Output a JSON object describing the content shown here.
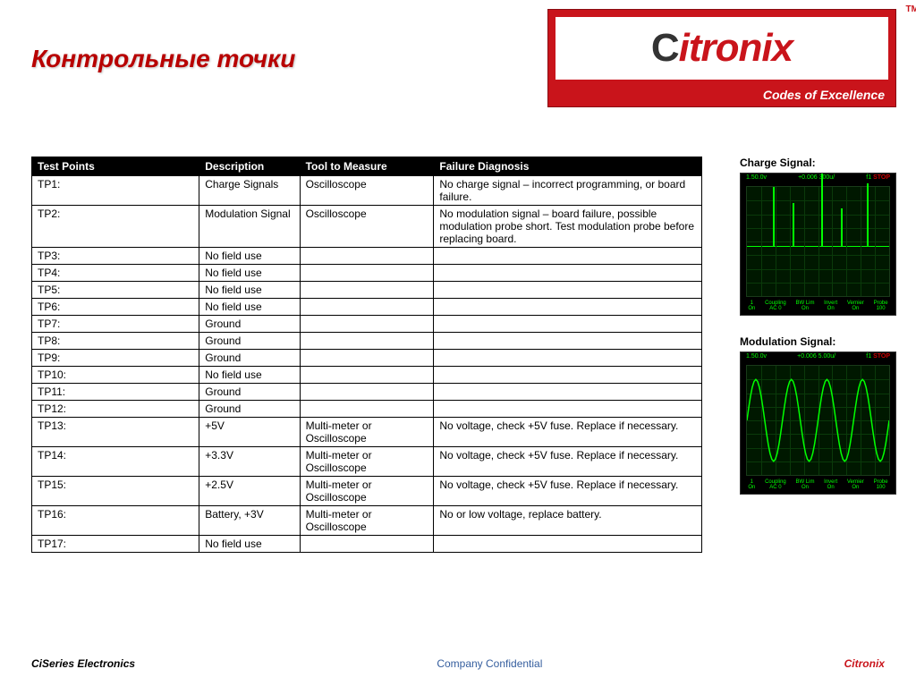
{
  "title": "Контрольные точки",
  "logo": {
    "name": "Citronix",
    "tagline": "Codes of Excellence",
    "tm": "TM"
  },
  "table": {
    "columns": [
      "Test Points",
      "Description",
      "Tool to Measure",
      "Failure Diagnosis"
    ],
    "rows": [
      [
        "TP1:",
        "Charge Signals",
        "Oscilloscope",
        "No charge signal – incorrect programming, or board failure."
      ],
      [
        "TP2:",
        "Modulation Signal",
        "Oscilloscope",
        "No modulation signal – board failure, possible modulation probe short. Test modulation probe before replacing board."
      ],
      [
        "TP3:",
        "No field use",
        "",
        ""
      ],
      [
        "TP4:",
        "No field use",
        "",
        ""
      ],
      [
        "TP5:",
        "No field use",
        "",
        ""
      ],
      [
        "TP6:",
        "No field use",
        "",
        ""
      ],
      [
        "TP7:",
        "Ground",
        "",
        ""
      ],
      [
        "TP8:",
        "Ground",
        "",
        ""
      ],
      [
        "TP9:",
        "Ground",
        "",
        ""
      ],
      [
        "TP10:",
        "No field use",
        "",
        ""
      ],
      [
        "TP11:",
        "Ground",
        "",
        ""
      ],
      [
        "TP12:",
        "Ground",
        "",
        ""
      ],
      [
        "TP13:",
        "+5V",
        "Multi-meter or Oscilloscope",
        "No voltage, check +5V fuse. Replace if necessary."
      ],
      [
        "TP14:",
        "+3.3V",
        "Multi-meter or Oscilloscope",
        "No voltage, check +5V fuse. Replace if necessary."
      ],
      [
        "TP15:",
        "+2.5V",
        "Multi-meter or Oscilloscope",
        "No voltage, check +5V fuse. Replace if necessary."
      ],
      [
        "TP16:",
        "Battery, +3V",
        "Multi-meter or Oscilloscope",
        "No or low voltage, replace battery."
      ],
      [
        "TP17:",
        "No field use",
        "",
        ""
      ]
    ]
  },
  "scope1": {
    "label": "Charge Signal:",
    "top_left": "1.50.0v",
    "top_center": "+0.006  300u/",
    "top_right_prefix": "f1",
    "top_right": "STOP",
    "spikes": [
      {
        "left_pct": 18,
        "height_pct": 55
      },
      {
        "left_pct": 32,
        "height_pct": 40
      },
      {
        "left_pct": 52,
        "height_pct": 70
      },
      {
        "left_pct": 66,
        "height_pct": 35
      },
      {
        "left_pct": 84,
        "height_pct": 58
      }
    ],
    "bottom_labels": [
      "1",
      "Coupling",
      "BW Lim",
      "Invert",
      "Vernier",
      "Probe"
    ],
    "bottom_values": [
      "On",
      "AC 0",
      "On",
      "On",
      "On",
      "100"
    ]
  },
  "scope2": {
    "label": "Modulation Signal:",
    "top_left": "1.50.0v",
    "top_center": "+0.006  5.00u/",
    "top_right_prefix": "f1",
    "top_right": "STOP",
    "bottom_labels": [
      "1",
      "Coupling",
      "BW Lim",
      "Invert",
      "Vernier",
      "Probe"
    ],
    "bottom_values": [
      "On",
      "AC 0",
      "On",
      "On",
      "On",
      "100"
    ]
  },
  "footer": {
    "left": "CiSeries Electronics",
    "center": "Company Confidential",
    "right": "Citronix"
  },
  "colors": {
    "brand_red": "#c9141b",
    "title_red": "#b80000",
    "link_blue": "#355e9e",
    "scope_green": "#00ff00",
    "scope_bg": "#001800"
  }
}
